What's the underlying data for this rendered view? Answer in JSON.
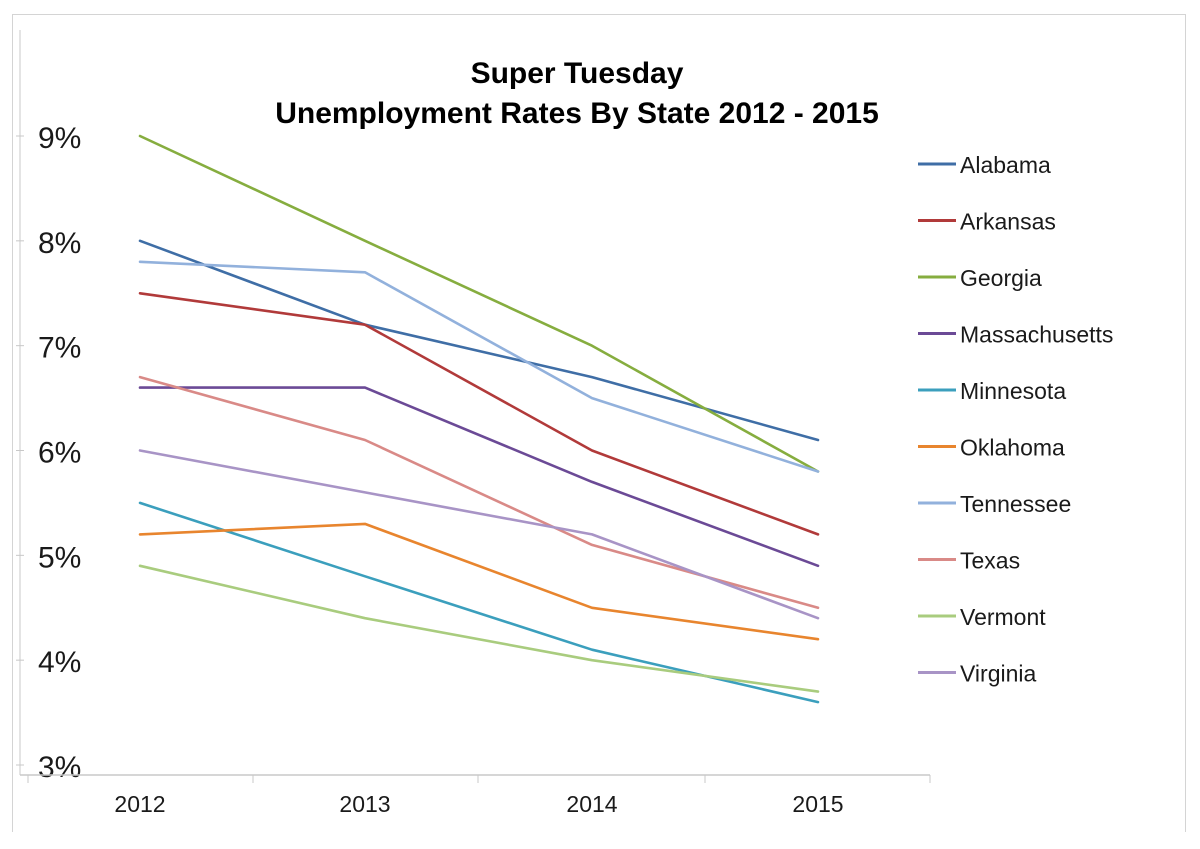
{
  "chart_data": {
    "type": "line",
    "title": "Super Tuesday",
    "subtitle": "Unemployment Rates By State 2012 - 2015",
    "xlabel": "",
    "ylabel": "",
    "categories": [
      "2012",
      "2013",
      "2014",
      "2015"
    ],
    "ylim": [
      3,
      9
    ],
    "y_tick_labels": [
      "3%",
      "4%",
      "5%",
      "6%",
      "7%",
      "8%",
      "9%"
    ],
    "y_ticks": [
      3,
      4,
      5,
      6,
      7,
      8,
      9
    ],
    "grid": false,
    "legend_position": "right",
    "series": [
      {
        "name": "Alabama",
        "color": "#3f6ea6",
        "values": [
          8.0,
          7.2,
          6.7,
          6.1
        ]
      },
      {
        "name": "Arkansas",
        "color": "#b13a3a",
        "values": [
          7.5,
          7.2,
          6.0,
          5.2
        ]
      },
      {
        "name": "Georgia",
        "color": "#86ad3f",
        "values": [
          9.0,
          8.0,
          7.0,
          5.8
        ]
      },
      {
        "name": "Massachusetts",
        "color": "#6b4a96",
        "values": [
          6.6,
          6.6,
          5.7,
          4.9
        ]
      },
      {
        "name": "Minnesota",
        "color": "#3b9fbd",
        "values": [
          5.5,
          4.8,
          4.1,
          3.6
        ]
      },
      {
        "name": "Oklahoma",
        "color": "#e8852e",
        "values": [
          5.2,
          5.3,
          4.5,
          4.2
        ]
      },
      {
        "name": "Tennessee",
        "color": "#92b1dc",
        "values": [
          7.8,
          7.7,
          6.5,
          5.8
        ]
      },
      {
        "name": "Texas",
        "color": "#d98a87",
        "values": [
          6.7,
          6.1,
          5.1,
          4.5
        ]
      },
      {
        "name": "Vermont",
        "color": "#a9cc7e",
        "values": [
          4.9,
          4.4,
          4.0,
          3.7
        ]
      },
      {
        "name": "Virginia",
        "color": "#a894c6",
        "values": [
          6.0,
          5.6,
          5.2,
          4.4
        ]
      }
    ]
  }
}
